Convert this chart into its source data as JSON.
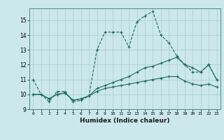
{
  "xlabel": "Humidex (Indice chaleur)",
  "background_color": "#cce8ec",
  "grid_color": "#aacccc",
  "line_color": "#1a6b5a",
  "xlim": [
    -0.5,
    23.5
  ],
  "ylim": [
    9,
    15.8
  ],
  "yticks": [
    9,
    10,
    11,
    12,
    13,
    14,
    15
  ],
  "xticks": [
    0,
    1,
    2,
    3,
    4,
    5,
    6,
    7,
    8,
    9,
    10,
    11,
    12,
    13,
    14,
    15,
    16,
    17,
    18,
    19,
    20,
    21,
    22,
    23
  ],
  "series": [
    {
      "x": [
        0,
        1,
        2,
        3,
        4,
        5,
        6,
        7,
        8,
        9,
        10,
        11,
        12,
        13,
        14,
        15,
        16,
        17,
        18,
        19,
        20,
        21,
        22,
        23
      ],
      "y": [
        11.0,
        10.0,
        9.5,
        10.2,
        10.2,
        9.5,
        9.6,
        9.9,
        13.0,
        14.2,
        14.2,
        14.2,
        13.2,
        14.9,
        15.3,
        15.6,
        14.0,
        13.5,
        12.6,
        12.0,
        11.5,
        11.5,
        12.0,
        11.0
      ],
      "style": "--",
      "marker": "+"
    },
    {
      "x": [
        0,
        1,
        2,
        3,
        4,
        5,
        6,
        7,
        8,
        9,
        10,
        11,
        12,
        13,
        14,
        15,
        16,
        17,
        18,
        19,
        20,
        21,
        22,
        23
      ],
      "y": [
        10.0,
        10.0,
        9.7,
        10.0,
        10.1,
        9.6,
        9.7,
        9.9,
        10.4,
        10.6,
        10.8,
        11.0,
        11.2,
        11.5,
        11.8,
        11.9,
        12.1,
        12.3,
        12.5,
        12.0,
        11.8,
        11.5,
        12.0,
        11.0
      ],
      "style": "-",
      "marker": "+"
    },
    {
      "x": [
        0,
        1,
        2,
        3,
        4,
        5,
        6,
        7,
        8,
        9,
        10,
        11,
        12,
        13,
        14,
        15,
        16,
        17,
        18,
        19,
        20,
        21,
        22,
        23
      ],
      "y": [
        10.0,
        10.0,
        9.7,
        10.0,
        10.1,
        9.6,
        9.7,
        9.9,
        10.2,
        10.4,
        10.5,
        10.6,
        10.7,
        10.8,
        10.9,
        11.0,
        11.1,
        11.2,
        11.2,
        10.9,
        10.7,
        10.6,
        10.7,
        10.5
      ],
      "style": "-",
      "marker": "+"
    }
  ]
}
